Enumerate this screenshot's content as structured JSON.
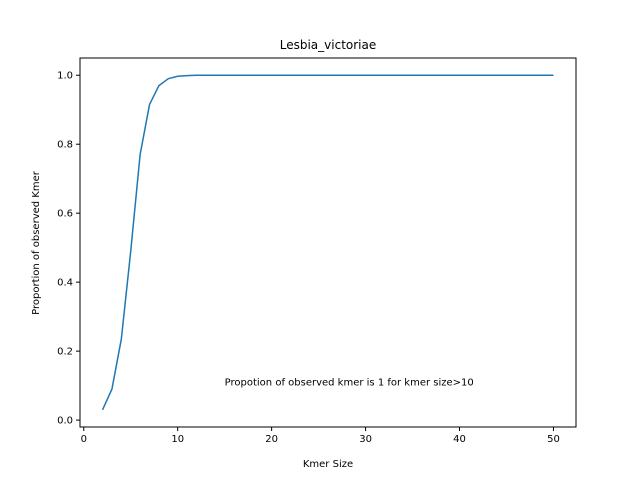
{
  "chart_data": {
    "type": "line",
    "title": "Lesbia_victoriae",
    "xlabel": "Kmer Size",
    "ylabel": "Proportion of observed Kmer",
    "xlim": [
      -0.4,
      52.4
    ],
    "ylim": [
      -0.02,
      1.05
    ],
    "xticks": [
      0,
      10,
      20,
      30,
      40,
      50
    ],
    "yticks": [
      0.0,
      0.2,
      0.4,
      0.6,
      0.8,
      1.0
    ],
    "xtick_labels": [
      "0",
      "10",
      "20",
      "30",
      "40",
      "50"
    ],
    "ytick_labels": [
      "0.0",
      "0.2",
      "0.4",
      "0.6",
      "0.8",
      "1.0"
    ],
    "grid": false,
    "line_color": "#1f77b4",
    "annotation": "Propotion of observed kmer is 1 for kmer size>10",
    "annotation_xy": [
      15,
      0.11
    ],
    "series": [
      {
        "x": [
          2,
          3,
          4,
          5,
          6,
          7,
          8,
          9,
          10,
          11,
          12,
          13,
          14,
          15,
          16,
          17,
          18,
          19,
          20,
          21,
          22,
          23,
          24,
          25,
          26,
          27,
          28,
          29,
          30,
          31,
          32,
          33,
          34,
          35,
          36,
          37,
          38,
          39,
          40,
          41,
          42,
          43,
          44,
          45,
          46,
          47,
          48,
          49,
          50
        ],
        "values": [
          0.03,
          0.09,
          0.235,
          0.49,
          0.77,
          0.915,
          0.97,
          0.99,
          0.997,
          0.999,
          1,
          1,
          1,
          1,
          1,
          1,
          1,
          1,
          1,
          1,
          1,
          1,
          1,
          1,
          1,
          1,
          1,
          1,
          1,
          1,
          1,
          1,
          1,
          1,
          1,
          1,
          1,
          1,
          1,
          1,
          1,
          1,
          1,
          1,
          1,
          1,
          1,
          1,
          1
        ]
      }
    ]
  }
}
